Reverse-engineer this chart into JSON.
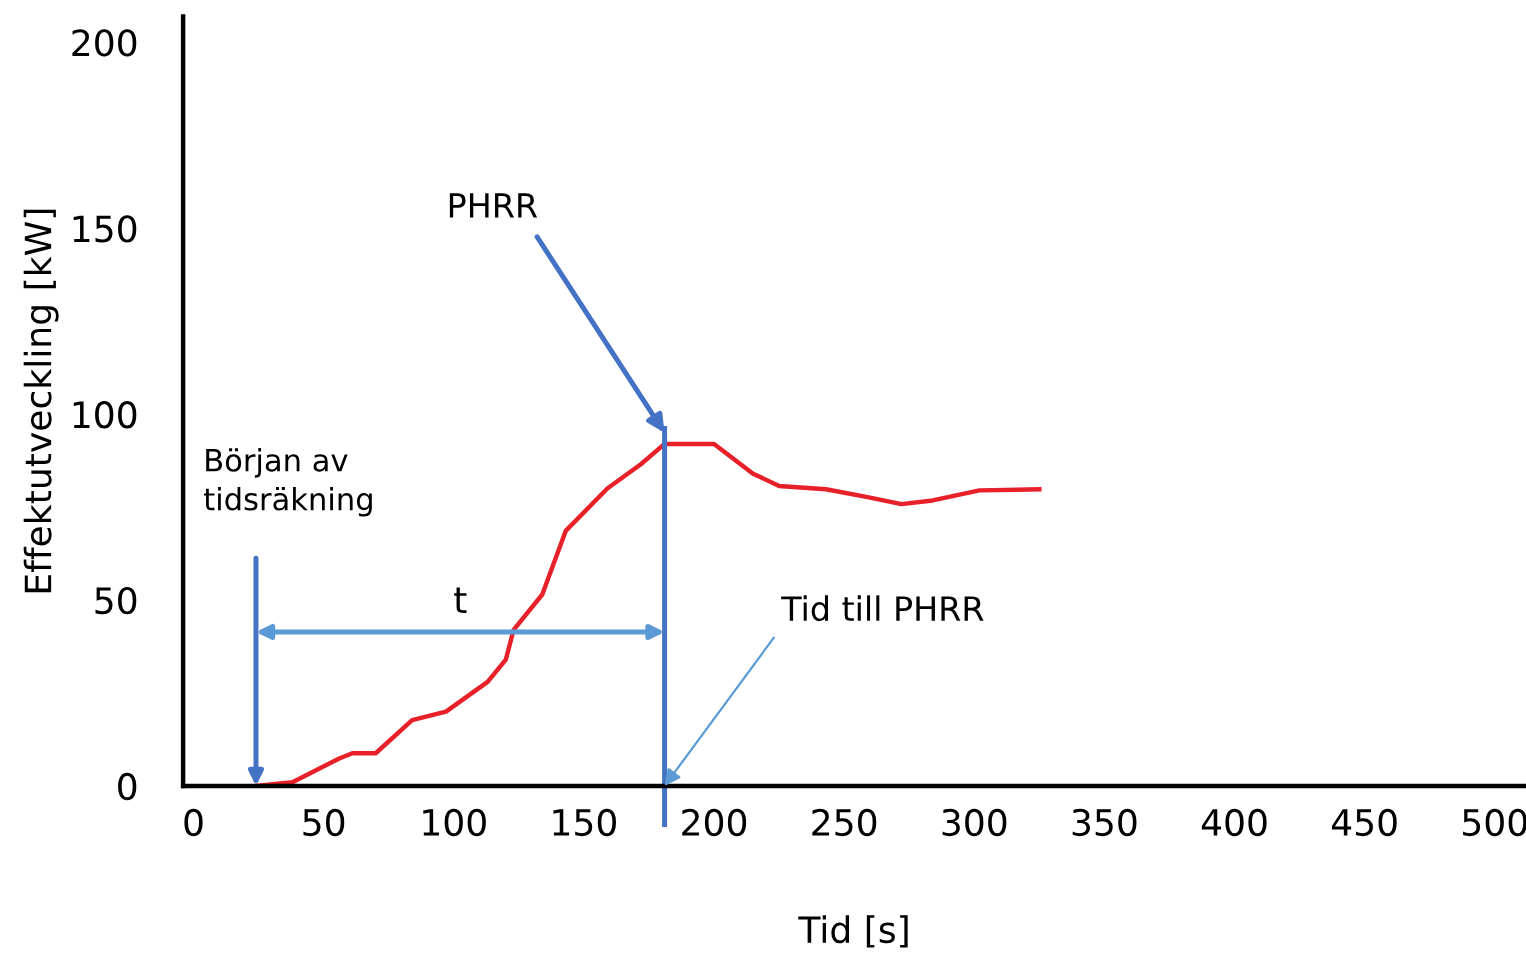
{
  "chart_data": {
    "type": "line",
    "xlabel": "Tid [s]",
    "ylabel": "Effektutveckling [kW]",
    "x": [
      24,
      38,
      56,
      61,
      70,
      84,
      97,
      113,
      120,
      123,
      134,
      143,
      159,
      172,
      181,
      200,
      215,
      225,
      243,
      259,
      272,
      284,
      302,
      325
    ],
    "series": [
      {
        "color": "#e8202a",
        "values": [
          0,
          1,
          7.4,
          8.8,
          8.8,
          17.7,
          20,
          28,
          34,
          42,
          51.5,
          68.6,
          80,
          86.6,
          92,
          92,
          84,
          80.7,
          79.8,
          77.7,
          75.8,
          76.8,
          79.5,
          79.8
        ]
      }
    ],
    "xlim": [
      -4,
      512
    ],
    "ylim": [
      0,
      207
    ],
    "xticks": [
      0,
      50,
      100,
      150,
      200,
      250,
      300,
      350,
      400,
      450,
      500
    ],
    "yticks": [
      0,
      50,
      100,
      150,
      200
    ],
    "grid": false,
    "legend": false,
    "marker": "none",
    "line_style": "solid",
    "ref_lines": [
      {
        "axis": "x",
        "value": 181,
        "color": "#4472c4"
      }
    ],
    "annotations": [
      {
        "text": "PHRR",
        "x": 181,
        "y": 95
      },
      {
        "text": "Tid till PHRR",
        "x": 181,
        "y": 0
      },
      "Början av\ntidsräkning",
      "t"
    ]
  }
}
